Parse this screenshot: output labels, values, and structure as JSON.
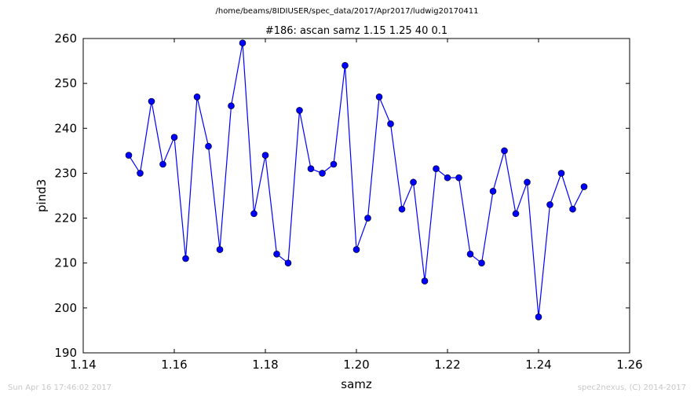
{
  "header": {
    "suptitle": "/home/beams/8IDIUSER/spec_data/2017/Apr2017/ludwig20170411"
  },
  "footer": {
    "timestamp": "Sun Apr 16 17:46:02 2017",
    "credit": "spec2nexus, (C) 2014-2017"
  },
  "colors": {
    "series": "#0000ff",
    "axes": "#000000"
  },
  "chart_data": {
    "type": "line",
    "title": "#186: ascan  samz 1.15 1.25  40 0.1",
    "xlabel": "samz",
    "ylabel": "pind3",
    "xlim": [
      1.14,
      1.26
    ],
    "ylim": [
      190,
      260
    ],
    "xticks": [
      "1.14",
      "1.16",
      "1.18",
      "1.20",
      "1.22",
      "1.24",
      "1.26"
    ],
    "yticks": [
      "190",
      "200",
      "210",
      "220",
      "230",
      "240",
      "250",
      "260"
    ],
    "grid": false,
    "series": [
      {
        "marker": "circle",
        "x": [
          1.15,
          1.1525,
          1.155,
          1.1575,
          1.16,
          1.1625,
          1.165,
          1.1675,
          1.17,
          1.1725,
          1.175,
          1.1775,
          1.18,
          1.1825,
          1.185,
          1.1875,
          1.19,
          1.1925,
          1.195,
          1.1975,
          1.2,
          1.2025,
          1.205,
          1.2075,
          1.21,
          1.2125,
          1.215,
          1.2175,
          1.22,
          1.2225,
          1.225,
          1.2275,
          1.23,
          1.2325,
          1.235,
          1.2375,
          1.24,
          1.2425,
          1.245,
          1.2475,
          1.25
        ],
        "y": [
          234,
          230,
          246,
          232,
          238,
          211,
          247,
          236,
          213,
          245,
          259,
          221,
          234,
          212,
          210,
          244,
          231,
          230,
          232,
          254,
          213,
          220,
          247,
          241,
          222,
          228,
          206,
          231,
          229,
          229,
          212,
          210,
          226,
          235,
          221,
          228,
          198,
          223,
          230,
          222,
          227
        ]
      }
    ]
  }
}
